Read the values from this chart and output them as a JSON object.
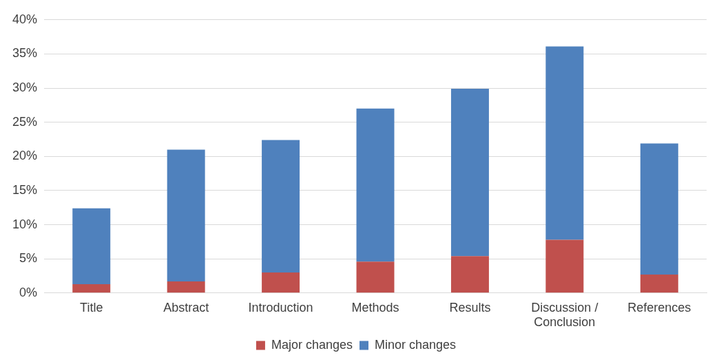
{
  "chart_data": {
    "type": "bar",
    "stacked": true,
    "categories": [
      "Title",
      "Abstract",
      "Introduction",
      "Methods",
      "Results",
      "Discussion / Conclusion",
      "References"
    ],
    "series": [
      {
        "name": "Major changes",
        "color": "#c0504d",
        "values": [
          1.3,
          1.7,
          3.0,
          4.6,
          5.4,
          7.8,
          2.7
        ]
      },
      {
        "name": "Minor changes",
        "color": "#4f81bd",
        "values": [
          11.1,
          19.3,
          19.4,
          22.4,
          24.5,
          28.3,
          19.2
        ]
      }
    ],
    "ylim": [
      0,
      40
    ],
    "yticks": [
      {
        "value": 0,
        "label": "0%"
      },
      {
        "value": 5,
        "label": "5%"
      },
      {
        "value": 10,
        "label": "10%"
      },
      {
        "value": 15,
        "label": "15%"
      },
      {
        "value": 20,
        "label": "20%"
      },
      {
        "value": 25,
        "label": "25%"
      },
      {
        "value": 30,
        "label": "30%"
      },
      {
        "value": 35,
        "label": "35%"
      },
      {
        "value": 40,
        "label": "40%"
      }
    ],
    "grid": "y",
    "legend": "bottom"
  }
}
